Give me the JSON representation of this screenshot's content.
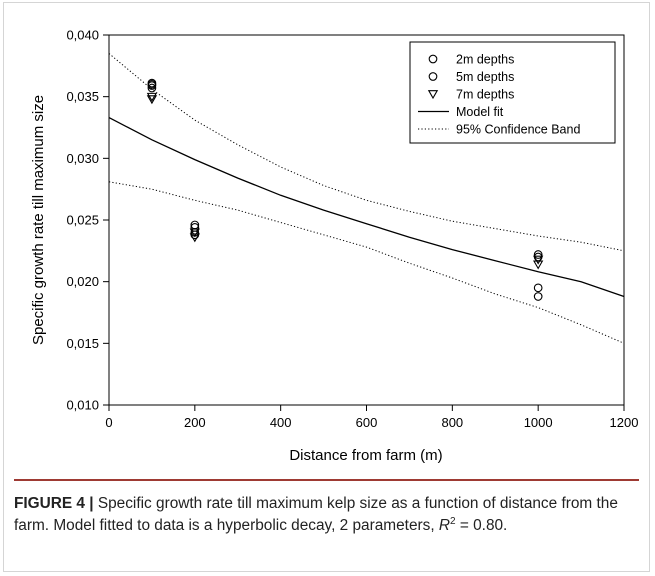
{
  "chart_data": {
    "type": "scatter",
    "xlabel": "Distance from farm (m)",
    "ylabel": "Specific growth rate till maximum size",
    "xlim": [
      0,
      1200
    ],
    "ylim": [
      0.01,
      0.04
    ],
    "x_ticks": [
      0,
      200,
      400,
      600,
      800,
      1000,
      1200
    ],
    "x_tick_labels": [
      "0",
      "200",
      "400",
      "600",
      "800",
      "1000",
      "1200"
    ],
    "y_ticks": [
      0.01,
      0.015,
      0.02,
      0.025,
      0.03,
      0.035,
      0.04
    ],
    "y_tick_labels": [
      "0,010",
      "0,015",
      "0,020",
      "0,025",
      "0,030",
      "0,035",
      "0,040"
    ],
    "grid": false,
    "legend_position": "top-right",
    "series": [
      {
        "name": "2m depths",
        "marker": "circle",
        "points": [
          [
            100,
            0.0361
          ],
          [
            100,
            0.0359
          ],
          [
            200,
            0.0246
          ],
          [
            200,
            0.024
          ],
          [
            1000,
            0.0222
          ],
          [
            1000,
            0.0195
          ]
        ]
      },
      {
        "name": "5m depths",
        "marker": "circle",
        "points": [
          [
            100,
            0.036
          ],
          [
            100,
            0.0357
          ],
          [
            200,
            0.0244
          ],
          [
            200,
            0.0238
          ],
          [
            1000,
            0.022
          ],
          [
            1000,
            0.0188
          ]
        ]
      },
      {
        "name": "7m depths",
        "marker": "triangle-down",
        "points": [
          [
            100,
            0.035
          ],
          [
            100,
            0.0348
          ],
          [
            200,
            0.024
          ],
          [
            200,
            0.0236
          ],
          [
            1000,
            0.0218
          ],
          [
            1000,
            0.0214
          ]
        ]
      },
      {
        "name": "Model fit",
        "style": "solid",
        "points": [
          [
            0,
            0.0333
          ],
          [
            100,
            0.0315
          ],
          [
            200,
            0.0299
          ],
          [
            300,
            0.0284
          ],
          [
            400,
            0.027
          ],
          [
            500,
            0.0258
          ],
          [
            600,
            0.0247
          ],
          [
            700,
            0.0236
          ],
          [
            800,
            0.0226
          ],
          [
            900,
            0.0217
          ],
          [
            1000,
            0.0208
          ],
          [
            1100,
            0.02
          ],
          [
            1200,
            0.0188
          ]
        ]
      },
      {
        "name": "95% Confidence Band",
        "style": "dotted",
        "upper": [
          [
            0,
            0.0385
          ],
          [
            100,
            0.0356
          ],
          [
            200,
            0.0331
          ],
          [
            300,
            0.0311
          ],
          [
            400,
            0.0293
          ],
          [
            500,
            0.0278
          ],
          [
            600,
            0.0266
          ],
          [
            700,
            0.0257
          ],
          [
            800,
            0.0249
          ],
          [
            900,
            0.0243
          ],
          [
            1000,
            0.0237
          ],
          [
            1100,
            0.0232
          ],
          [
            1200,
            0.0225
          ]
        ],
        "lower": [
          [
            0,
            0.0281
          ],
          [
            100,
            0.0275
          ],
          [
            200,
            0.0266
          ],
          [
            300,
            0.0258
          ],
          [
            400,
            0.0248
          ],
          [
            500,
            0.0238
          ],
          [
            600,
            0.0228
          ],
          [
            700,
            0.0215
          ],
          [
            800,
            0.0203
          ],
          [
            900,
            0.019
          ],
          [
            1000,
            0.0179
          ],
          [
            1100,
            0.0165
          ],
          [
            1200,
            0.015
          ]
        ]
      }
    ]
  },
  "caption": {
    "label": "FIGURE 4 |",
    "text_main": " Specific growth rate till maximum kelp size as a function of distance from the farm. Model fitted to data is a hyperbolic decay, 2 parameters, ",
    "r2_symbol": "R",
    "r2_exponent": "2",
    "r2_value": " = 0.80."
  },
  "colors": {
    "caption_rule": "#9e3a33",
    "chart_ink": "#000000"
  }
}
